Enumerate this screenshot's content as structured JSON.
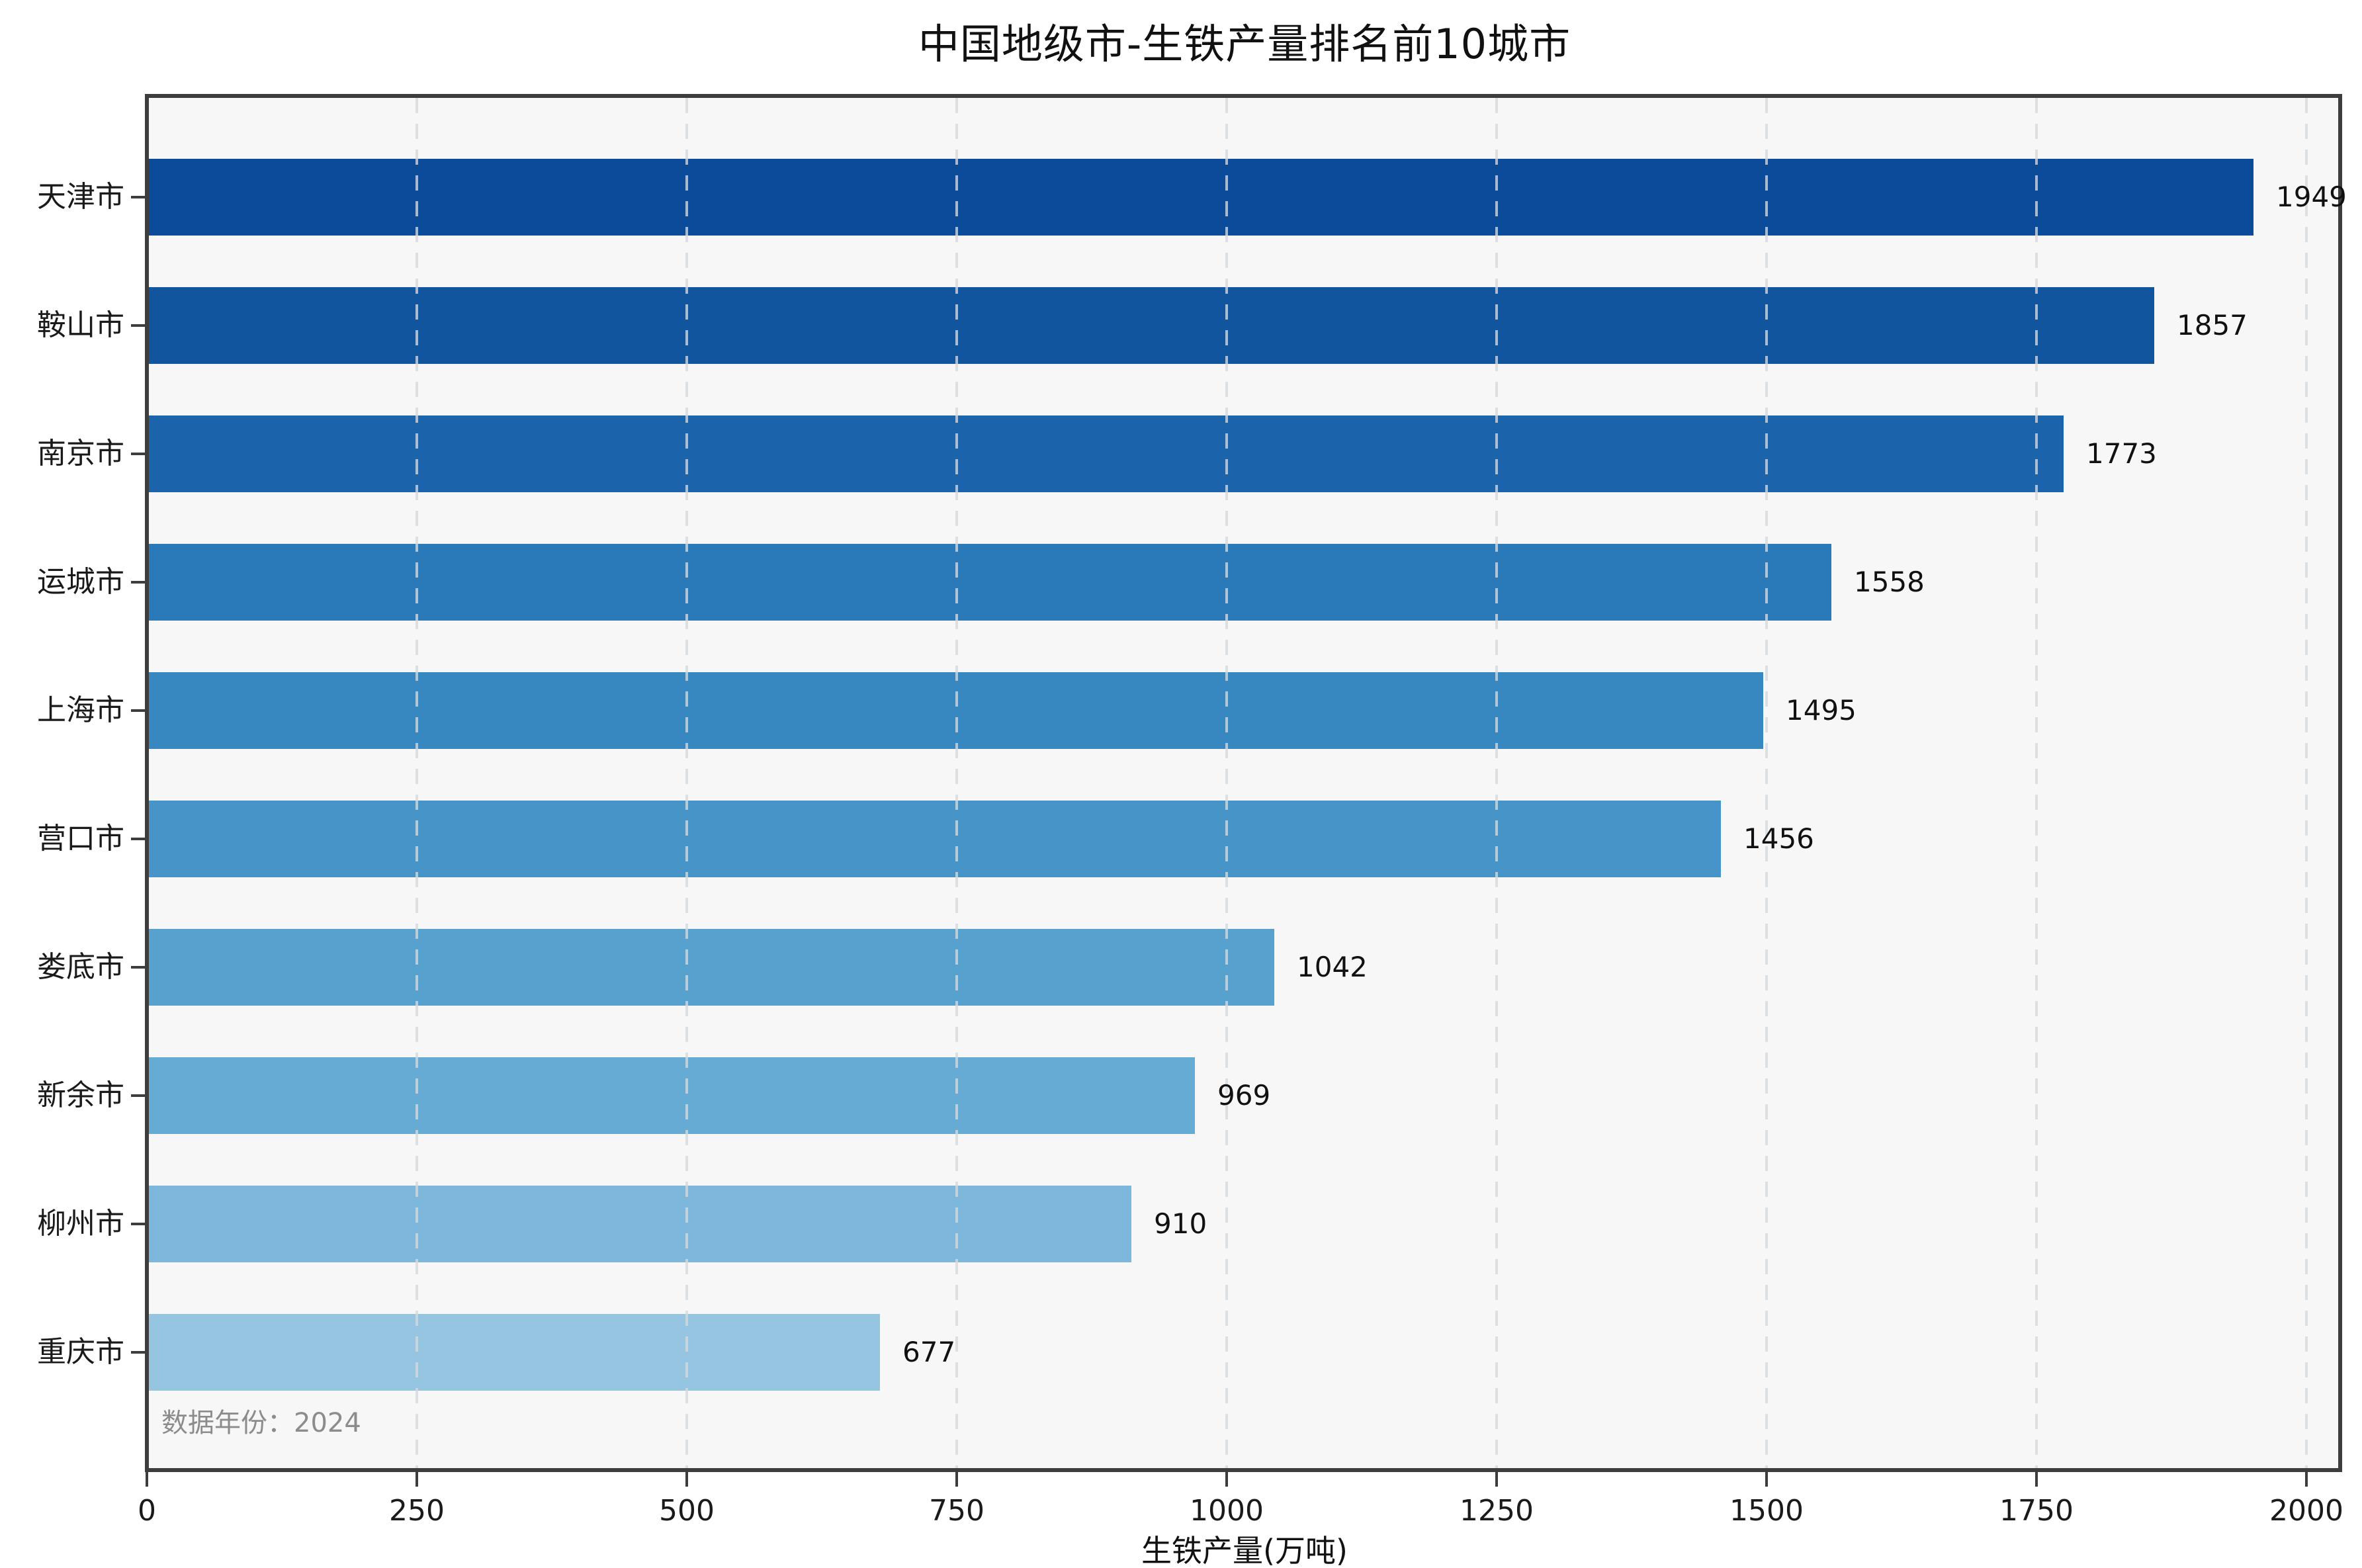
{
  "title": "中国地级市-生铁产量排名前10城市",
  "axes": {
    "xlabel": "生铁产量(万吨)",
    "x_ticks": [
      "0",
      "250",
      "500",
      "750",
      "1000",
      "1250",
      "1500",
      "1750",
      "2000"
    ]
  },
  "footnote": "数据年份：2024",
  "chart_data": {
    "type": "bar",
    "orientation": "horizontal",
    "title": "中国地级市-生铁产量排名前10城市",
    "xlabel": "生铁产量(万吨)",
    "ylabel": "",
    "categories": [
      "天津市",
      "鞍山市",
      "南京市",
      "运城市",
      "上海市",
      "营口市",
      "娄底市",
      "新余市",
      "柳州市",
      "重庆市"
    ],
    "values": [
      1949,
      1857,
      1773,
      1558,
      1495,
      1456,
      1042,
      969,
      910,
      677
    ],
    "value_labels_shown": true,
    "x_ticks": [
      0,
      250,
      500,
      750,
      1000,
      1250,
      1500,
      1750,
      2000
    ],
    "xlim": [
      0,
      2030
    ],
    "grid": "vertical dashed gridlines at each x tick",
    "legend": "none",
    "annotation": "数据年份：2024",
    "bar_colors": [
      "#0c4b99",
      "#11559f",
      "#1b64ab",
      "#2a79b8",
      "#3787c0",
      "#4795c8",
      "#57a1ce",
      "#66abd4",
      "#7db8dc",
      "#95c5e1"
    ]
  },
  "colors": {
    "figure_background": "#ffffff",
    "plot_background": "#f7f7f7",
    "spine": "#3d3d3d",
    "gridline": "#d5d9dd",
    "text": "#111111",
    "footnote_text": "#8c8c8c"
  }
}
